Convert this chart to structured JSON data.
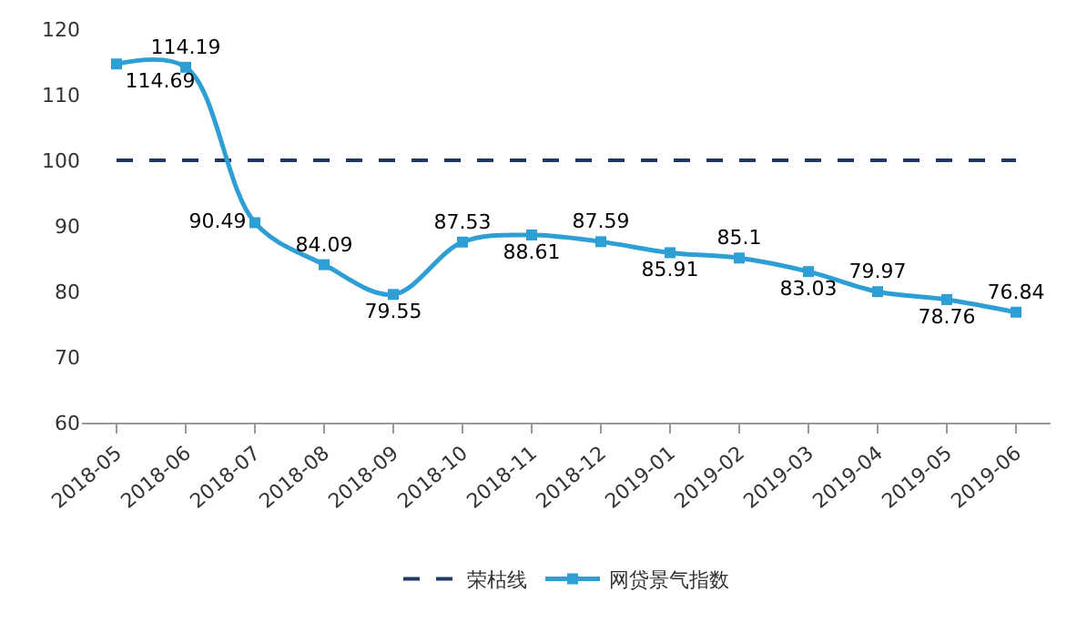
{
  "chart_data": {
    "type": "line",
    "categories": [
      "2018-05",
      "2018-06",
      "2018-07",
      "2018-08",
      "2018-09",
      "2018-10",
      "2018-11",
      "2018-12",
      "2019-01",
      "2019-02",
      "2019-03",
      "2019-04",
      "2019-05",
      "2019-06"
    ],
    "series": [
      {
        "name": "网贷景气指数",
        "color": "#2e9fd4",
        "values": [
          114.69,
          114.19,
          90.49,
          84.09,
          79.55,
          87.53,
          88.61,
          87.59,
          85.91,
          85.1,
          83.03,
          79.97,
          78.76,
          76.84
        ]
      }
    ],
    "ref_lines": [
      {
        "axis": "y",
        "value": 100,
        "label": "荣枯线",
        "color": "#1f3864",
        "line_style": "dashed"
      }
    ],
    "ylim": [
      60,
      120
    ],
    "yticks": [
      60,
      70,
      80,
      90,
      100,
      110,
      120
    ],
    "data_labels": true,
    "grid": false,
    "legend": "bottom",
    "marker": "square",
    "line_style": "solid"
  }
}
